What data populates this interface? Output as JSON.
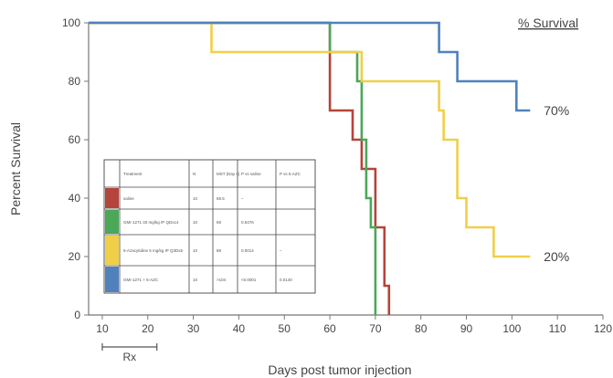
{
  "chart_data": {
    "type": "line",
    "step": true,
    "corner_label": "% Survival",
    "xlabel": "Days post tumor injection",
    "ylabel": "Percent Survival",
    "xlim": [
      7,
      120
    ],
    "ylim": [
      0,
      100
    ],
    "xticks": [
      10,
      20,
      30,
      40,
      50,
      60,
      70,
      80,
      90,
      100,
      110,
      120
    ],
    "yticks": [
      0,
      20,
      40,
      60,
      80,
      100
    ],
    "bracket": {
      "label": "Rx",
      "from": 10,
      "to": 22
    },
    "series": [
      {
        "name": "saline",
        "color": "#b5443a",
        "points": [
          [
            7,
            100
          ],
          [
            60,
            100
          ],
          [
            60,
            70
          ],
          [
            65,
            70
          ],
          [
            65,
            60
          ],
          [
            67,
            60
          ],
          [
            67,
            50
          ],
          [
            70,
            50
          ],
          [
            70,
            30
          ],
          [
            72,
            30
          ],
          [
            72,
            10
          ],
          [
            73,
            10
          ],
          [
            73,
            0
          ]
        ]
      },
      {
        "name": "GMI-1271 40 mg/kg IP QDx14",
        "color": "#4aa857",
        "points": [
          [
            7,
            100
          ],
          [
            60,
            100
          ],
          [
            60,
            90
          ],
          [
            66,
            90
          ],
          [
            66,
            80
          ],
          [
            67,
            80
          ],
          [
            67,
            60
          ],
          [
            68,
            60
          ],
          [
            68,
            40
          ],
          [
            69,
            40
          ],
          [
            69,
            30
          ],
          [
            70,
            30
          ],
          [
            70,
            0
          ]
        ]
      },
      {
        "name": "5-Azacytidine 5 mg/kg IP Q3Dx5",
        "color": "#f0cf48",
        "points": [
          [
            7,
            100
          ],
          [
            34,
            100
          ],
          [
            34,
            90
          ],
          [
            67,
            90
          ],
          [
            67,
            80
          ],
          [
            84,
            80
          ],
          [
            84,
            70
          ],
          [
            85,
            70
          ],
          [
            85,
            60
          ],
          [
            88,
            60
          ],
          [
            88,
            40
          ],
          [
            90,
            40
          ],
          [
            90,
            30
          ],
          [
            96,
            30
          ],
          [
            96,
            20
          ],
          [
            104,
            20
          ]
        ]
      },
      {
        "name": "GMI-1271 + 5-AZC",
        "color": "#4f82bd",
        "points": [
          [
            7,
            100
          ],
          [
            84,
            100
          ],
          [
            84,
            90
          ],
          [
            88,
            90
          ],
          [
            88,
            80
          ],
          [
            90,
            80
          ],
          [
            90,
            80
          ],
          [
            101,
            80
          ],
          [
            101,
            70
          ],
          [
            104,
            70
          ]
        ]
      }
    ],
    "annotations": [
      {
        "text": "70%",
        "x": 106,
        "y": 70
      },
      {
        "text": "20%",
        "x": 106,
        "y": 20
      }
    ],
    "legend_table": {
      "headers": [
        "Treatment",
        "N",
        "MST (Day s)",
        "P vs saline",
        "P vs 5-AZC"
      ],
      "rows": [
        {
          "color": "#b5443a",
          "cells": [
            "saline",
            "10",
            "69.5",
            "–",
            ""
          ]
        },
        {
          "color": "#4aa857",
          "cells": [
            "GMI-1271 40 mg/kg IP QDx14",
            "10",
            "69",
            "0.5476",
            ""
          ]
        },
        {
          "color": "#f0cf48",
          "cells": [
            "5-Azacytidine 5 mg/kg IP Q3Dx5",
            "10",
            "88",
            "0.0014",
            "–"
          ]
        },
        {
          "color": "#4f82bd",
          "cells": [
            "GMI-1271 + 5-AZC",
            "10",
            ">104",
            "<0.0001",
            "0.0140"
          ]
        }
      ]
    }
  }
}
